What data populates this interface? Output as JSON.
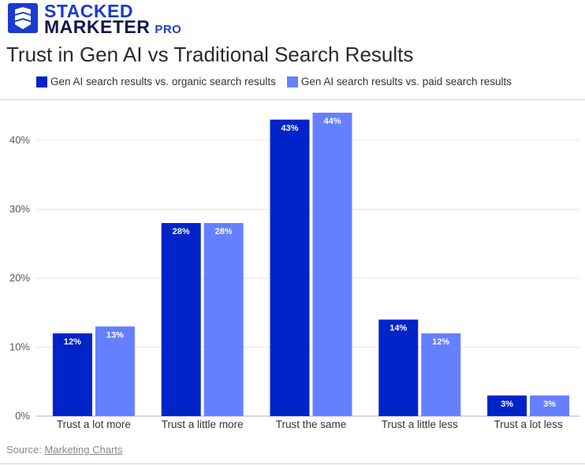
{
  "brand": {
    "line1": "STACKED",
    "line2": "MARKETER",
    "badge": "PRO"
  },
  "colors": {
    "brand": "#1a3bd1",
    "series1": "#0024c9",
    "series2": "#6580ff"
  },
  "source": {
    "prefix": "Source: ",
    "link": "Marketing Charts"
  },
  "chart_data": {
    "type": "bar",
    "title": "Trust in Gen AI vs Traditional Search Results",
    "categories": [
      "Trust a lot more",
      "Trust a little more",
      "Trust the same",
      "Trust a little less",
      "Trust a lot less"
    ],
    "series": [
      {
        "name": "Gen AI search results vs. organic search results",
        "values": [
          12,
          28,
          43,
          14,
          3
        ],
        "color": "#0024c9"
      },
      {
        "name": "Gen AI search results vs. paid search results",
        "values": [
          13,
          28,
          44,
          12,
          3
        ],
        "color": "#6580ff"
      }
    ],
    "yticks": [
      "0%",
      "10%",
      "20%",
      "30%",
      "40%"
    ],
    "ylim": [
      0,
      45
    ],
    "value_suffix": "%",
    "grid": true,
    "legend": "top"
  }
}
